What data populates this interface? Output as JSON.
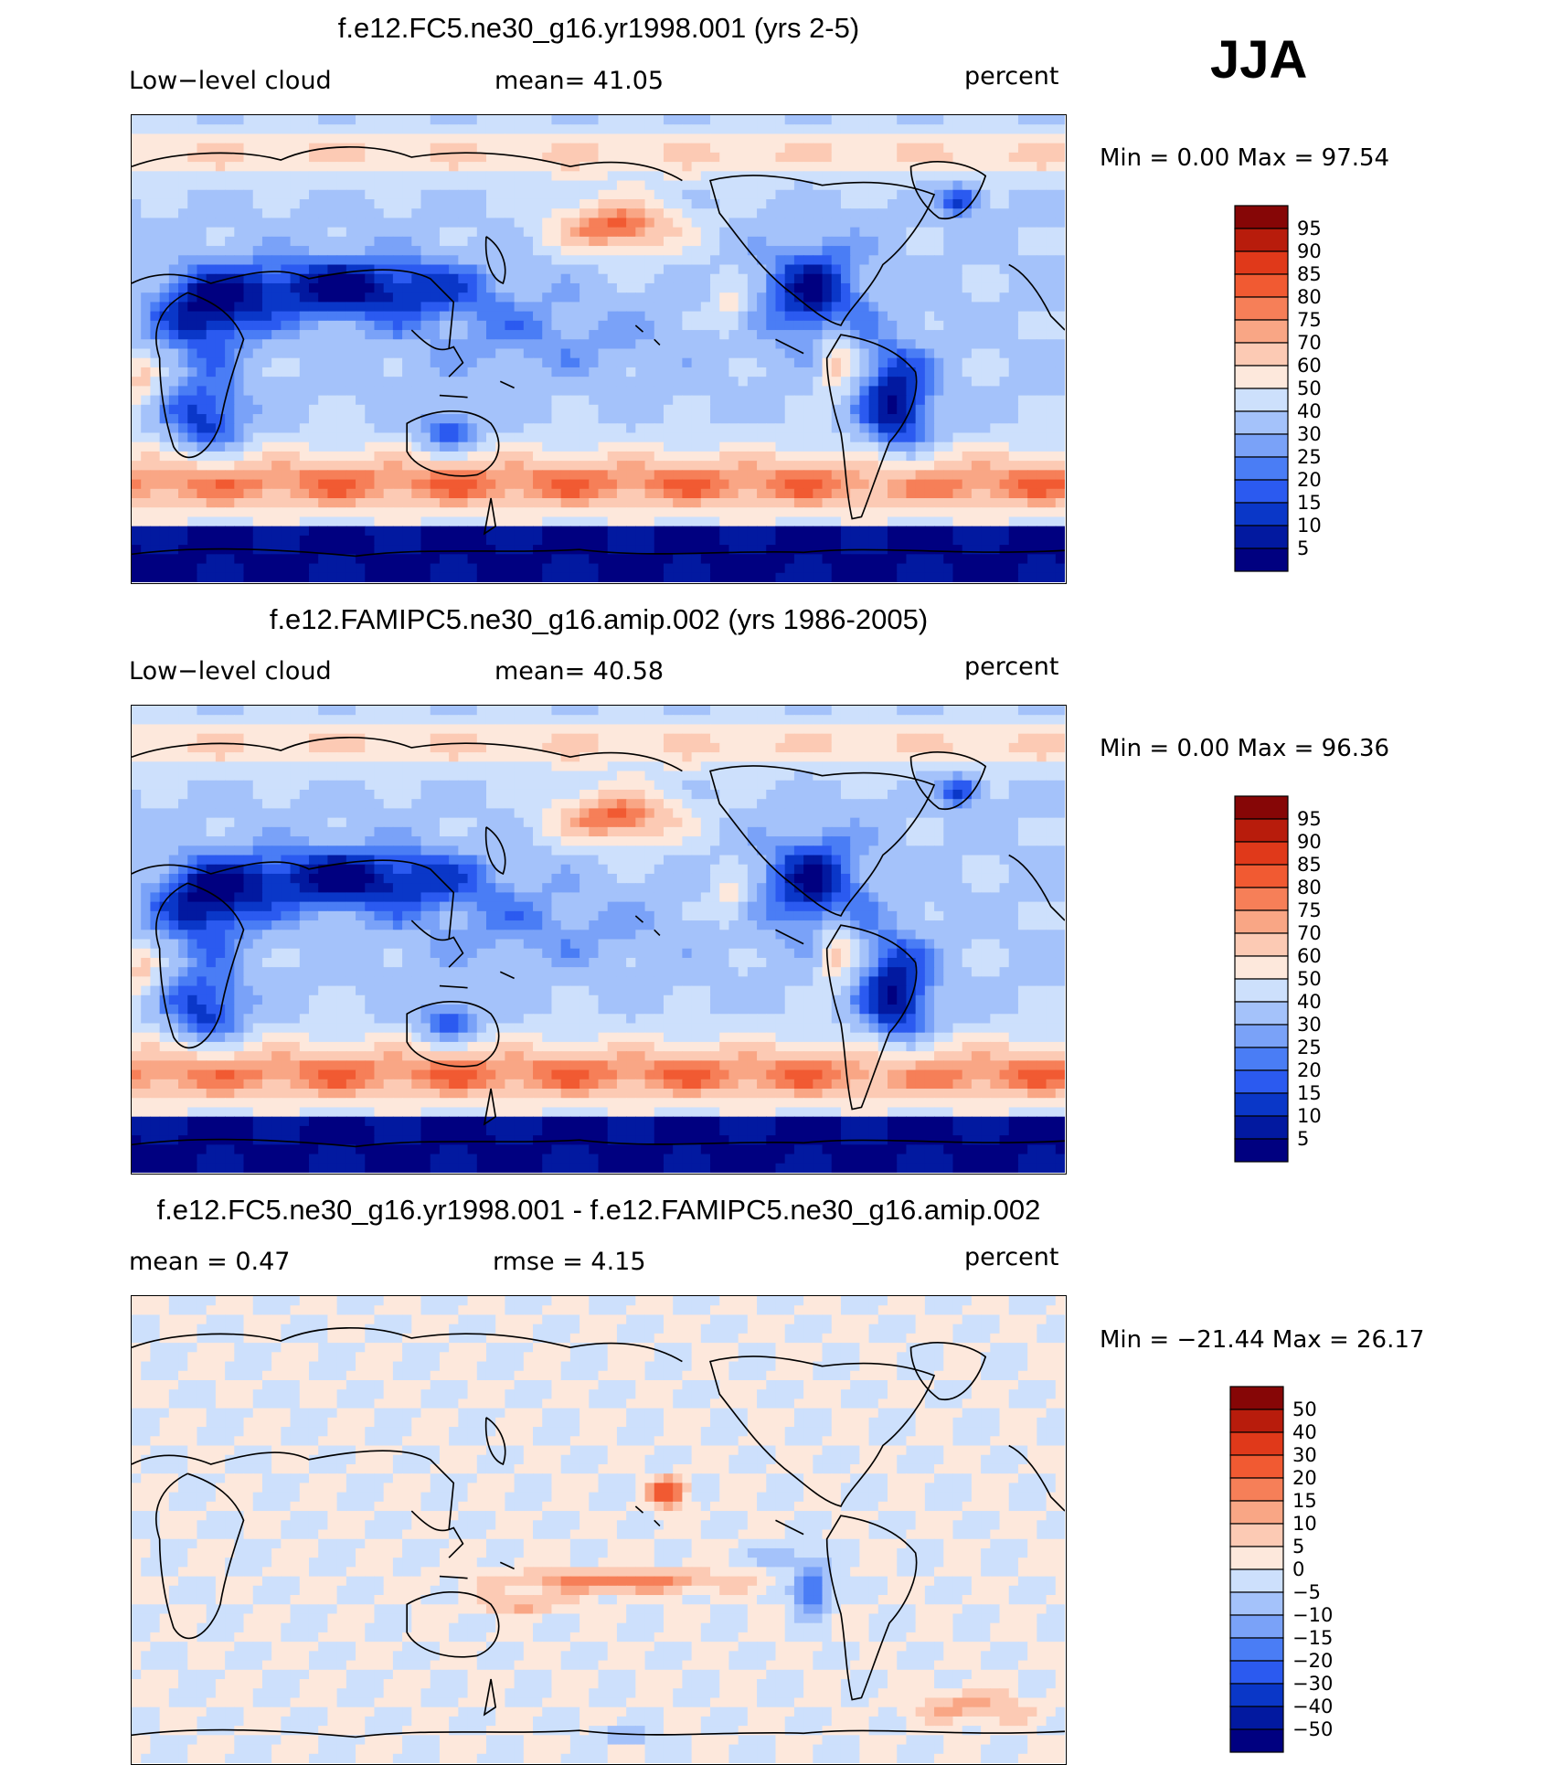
{
  "season": "JJA",
  "colors": {
    "abs_scale": [
      "#000080",
      "#0219a0",
      "#0a37c8",
      "#2b5af0",
      "#4a7df5",
      "#7aa2f8",
      "#a4c2fa",
      "#cde0fc",
      "#fde8dc",
      "#fccab4",
      "#f9a685",
      "#f67f58",
      "#f15a32",
      "#e0391a",
      "#b81c0c",
      "#860606"
    ],
    "diff_scale": [
      "#000080",
      "#0219a0",
      "#0a37c8",
      "#2b5af0",
      "#4a7df5",
      "#7aa2f8",
      "#a4c2fa",
      "#cde0fc",
      "#fde8dc",
      "#fccab4",
      "#f9a685",
      "#f67f58",
      "#f15a32",
      "#e0391a",
      "#b81c0c",
      "#860606"
    ]
  },
  "panels": [
    {
      "title": "f.e12.FC5.ne30_g16.yr1998.001 (yrs 2-5)",
      "left_label": "Low−level cloud",
      "mid_label": "mean=   41.05",
      "right_label": "percent",
      "minmax": "Min =     0.00 Max =   97.54",
      "levels": [
        "95",
        "90",
        "85",
        "80",
        "75",
        "70",
        "60",
        "50",
        "40",
        "30",
        "25",
        "20",
        "15",
        "10",
        "5"
      ]
    },
    {
      "title": "f.e12.FAMIPC5.ne30_g16.amip.002 (yrs 1986-2005)",
      "left_label": "Low−level cloud",
      "mid_label": "mean=   40.58",
      "right_label": "percent",
      "minmax": "Min =     0.00 Max =   96.36",
      "levels": [
        "95",
        "90",
        "85",
        "80",
        "75",
        "70",
        "60",
        "50",
        "40",
        "30",
        "25",
        "20",
        "15",
        "10",
        "5"
      ]
    },
    {
      "title": "f.e12.FC5.ne30_g16.yr1998.001 - f.e12.FAMIPC5.ne30_g16.amip.002",
      "left_label": "mean =    0.47",
      "mid_label": "rmse =    4.15",
      "right_label": "percent",
      "minmax": "Min = −21.44 Max =   26.17",
      "levels": [
        "50",
        "40",
        "30",
        "20",
        "15",
        "10",
        "5",
        "0",
        "−5",
        "−10",
        "−15",
        "−20",
        "−30",
        "−40",
        "−50"
      ]
    }
  ],
  "chart_data": [
    {
      "type": "heatmap",
      "title": "f.e12.FC5.ne30_g16.yr1998.001 (yrs 2-5)",
      "variable": "Low-level cloud",
      "units": "percent",
      "mean": 41.05,
      "min": 0.0,
      "max": 97.54,
      "contour_levels": [
        5,
        10,
        15,
        20,
        25,
        30,
        40,
        50,
        60,
        70,
        75,
        80,
        85,
        90,
        95
      ]
    },
    {
      "type": "heatmap",
      "title": "f.e12.FAMIPC5.ne30_g16.amip.002 (yrs 1986-2005)",
      "variable": "Low-level cloud",
      "units": "percent",
      "mean": 40.58,
      "min": 0.0,
      "max": 96.36,
      "contour_levels": [
        5,
        10,
        15,
        20,
        25,
        30,
        40,
        50,
        60,
        70,
        75,
        80,
        85,
        90,
        95
      ]
    },
    {
      "type": "heatmap",
      "title": "f.e12.FC5.ne30_g16.yr1998.001 - f.e12.FAMIPC5.ne30_g16.amip.002",
      "units": "percent",
      "mean": 0.47,
      "rmse": 4.15,
      "min": -21.44,
      "max": 26.17,
      "contour_levels": [
        -50,
        -40,
        -30,
        -20,
        -15,
        -10,
        -5,
        0,
        5,
        10,
        15,
        20,
        30,
        40,
        50
      ]
    }
  ]
}
